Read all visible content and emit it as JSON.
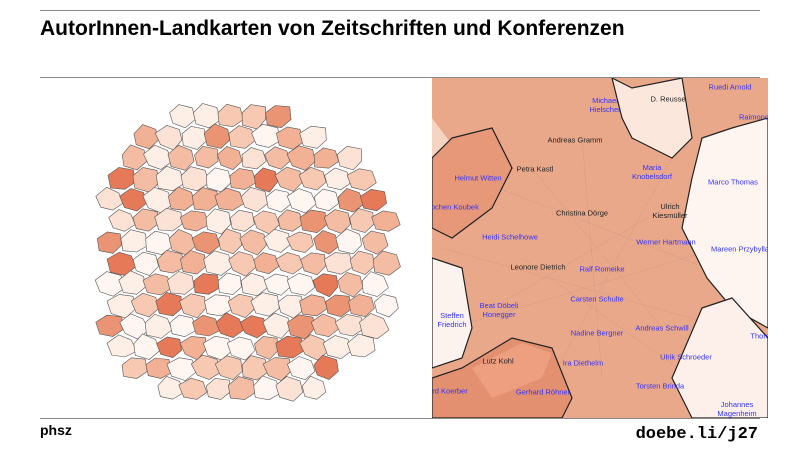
{
  "header": {
    "title": "AutorInnen-Landkarten von Zeitschriften und Konferenzen"
  },
  "map": {
    "labels": [
      {
        "text": "Michael\nHielscher",
        "color": "#3333ff"
      },
      {
        "text": "D. Reusse",
        "color": "#222222"
      },
      {
        "text": "Ruedi Arnold",
        "color": "#3333ff"
      },
      {
        "text": "Raimond",
        "color": "#3333ff"
      },
      {
        "text": "Andreas Gramm",
        "color": "#222222"
      },
      {
        "text": "Petra Kastl",
        "color": "#222222"
      },
      {
        "text": "Helmut Witten",
        "color": "#3333ff"
      },
      {
        "text": "Maria\nKnobelsdorf",
        "color": "#3333ff"
      },
      {
        "text": "Marco Thomas",
        "color": "#3333ff"
      },
      {
        "text": "Jochen Koubek",
        "color": "#3333ff"
      },
      {
        "text": "Christina Dörge",
        "color": "#222222"
      },
      {
        "text": "Ulrich\nKiesmüller",
        "color": "#222222"
      },
      {
        "text": "Heidi Schelhowe",
        "color": "#3333ff"
      },
      {
        "text": "Werner Hartmann",
        "color": "#3333ff"
      },
      {
        "text": "Mareen Przybylla",
        "color": "#3333ff"
      },
      {
        "text": "Leonore Dietrich",
        "color": "#222222"
      },
      {
        "text": "Ralf Romeike",
        "color": "#3333ff"
      },
      {
        "text": "Carsten Schulte",
        "color": "#3333ff"
      },
      {
        "text": "Beat Döbeli\nHonegger",
        "color": "#3333ff"
      },
      {
        "text": "Steffen\nFriedrich",
        "color": "#3333ff"
      },
      {
        "text": "Andreas Schwill",
        "color": "#3333ff"
      },
      {
        "text": "Nadine Bergner",
        "color": "#3333ff"
      },
      {
        "text": "Thors",
        "color": "#3333ff"
      },
      {
        "text": "Ulrik Schroeder",
        "color": "#3333ff"
      },
      {
        "text": "Ira Diethelm",
        "color": "#3333ff"
      },
      {
        "text": "Lutz Kohl",
        "color": "#222222"
      },
      {
        "text": "Torsten Brinda",
        "color": "#3333ff"
      },
      {
        "text": "Gerhard Röhner",
        "color": "#3333ff"
      },
      {
        "text": "rd Koerber",
        "color": "#3333ff"
      },
      {
        "text": "Johannes\nMagenheim",
        "color": "#3333ff"
      }
    ]
  },
  "footer": {
    "left": "phsz",
    "right": "doebe.li/j27"
  }
}
